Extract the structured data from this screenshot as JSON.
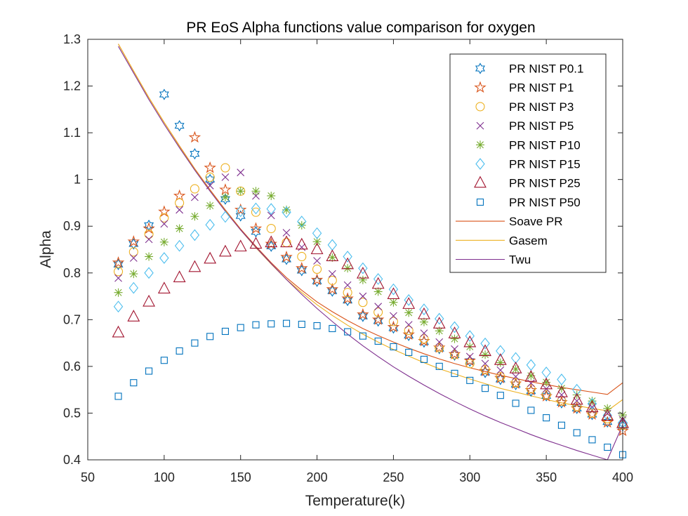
{
  "chart_data": {
    "type": "scatter",
    "title": "PR EoS Alpha functions value comparison for oxygen",
    "xlabel": "Temperature(k)",
    "ylabel": "Alpha",
    "xlim": [
      50,
      400
    ],
    "ylim": [
      0.4,
      1.3
    ],
    "xticks": [
      50,
      100,
      150,
      200,
      250,
      300,
      350,
      400
    ],
    "xtick_labels": [
      "50",
      "100",
      "150",
      "200",
      "250",
      "300",
      "350",
      "400"
    ],
    "yticks": [
      0.4,
      0.5,
      0.6,
      0.7,
      0.8,
      0.9,
      1.0,
      1.1,
      1.2,
      1.3
    ],
    "ytick_labels": [
      "0.4",
      "0.5",
      "0.6",
      "0.7",
      "0.8",
      "0.9",
      "1",
      "1.1",
      "1.2",
      "1.3"
    ],
    "grid": false,
    "legend_position": "top-right",
    "x": [
      70,
      80,
      90,
      100,
      110,
      120,
      130,
      140,
      150,
      160,
      170,
      180,
      190,
      200,
      210,
      220,
      230,
      240,
      250,
      260,
      270,
      280,
      290,
      300,
      310,
      320,
      330,
      340,
      350,
      360,
      370,
      380,
      390,
      400
    ],
    "series": [
      {
        "name": "PR NIST P0.1",
        "kind": "marker",
        "marker": "hexagram",
        "color": "#0072BD",
        "values": [
          0.818,
          0.862,
          0.902,
          1.182,
          1.115,
          1.055,
          1.0,
          0.958,
          0.922,
          0.888,
          0.857,
          0.829,
          0.805,
          0.782,
          0.761,
          0.741,
          0.707,
          0.697,
          0.682,
          0.666,
          0.652,
          0.638,
          0.624,
          0.611,
          0.587,
          0.572,
          0.561,
          0.547,
          0.537,
          0.522,
          0.51,
          0.497,
          0.481,
          0.473
        ]
      },
      {
        "name": "PR NIST P1",
        "kind": "marker",
        "marker": "pentagram",
        "color": "#D95319",
        "values": [
          0.822,
          0.867,
          0.895,
          0.931,
          0.965,
          1.09,
          1.025,
          0.978,
          0.935,
          0.895,
          0.862,
          0.834,
          0.81,
          0.785,
          0.765,
          0.745,
          0.711,
          0.7,
          0.684,
          0.668,
          0.654,
          0.64,
          0.626,
          0.612,
          0.59,
          0.575,
          0.563,
          0.549,
          0.536,
          0.523,
          0.51,
          0.497,
          0.48,
          0.462
        ]
      },
      {
        "name": "PR NIST P3",
        "kind": "marker",
        "marker": "circle",
        "color": "#EDB120",
        "values": [
          0.803,
          0.845,
          0.883,
          0.918,
          0.95,
          0.98,
          1.005,
          1.025,
          0.975,
          0.93,
          0.895,
          0.865,
          0.835,
          0.808,
          0.784,
          0.758,
          0.737,
          0.716,
          0.696,
          0.677,
          0.659,
          0.64,
          0.625,
          0.606,
          0.593,
          0.578,
          0.565,
          0.552,
          0.539,
          0.526,
          0.514,
          0.5,
          0.488,
          0.474
        ]
      },
      {
        "name": "PR NIST P5",
        "kind": "marker",
        "marker": "x",
        "color": "#7E2F8E",
        "values": [
          0.789,
          0.832,
          0.872,
          0.905,
          0.935,
          0.962,
          0.987,
          1.005,
          1.015,
          0.965,
          0.923,
          0.886,
          0.855,
          0.826,
          0.798,
          0.774,
          0.75,
          0.728,
          0.708,
          0.689,
          0.671,
          0.652,
          0.637,
          0.621,
          0.606,
          0.592,
          0.578,
          0.564,
          0.552,
          0.539,
          0.526,
          0.513,
          0.499,
          0.486
        ]
      },
      {
        "name": "PR NIST P10",
        "kind": "marker",
        "marker": "asterisk",
        "color": "#77AC30",
        "values": [
          0.758,
          0.798,
          0.835,
          0.866,
          0.895,
          0.921,
          0.944,
          0.962,
          0.975,
          0.975,
          0.965,
          0.935,
          0.902,
          0.867,
          0.833,
          0.81,
          0.785,
          0.76,
          0.737,
          0.715,
          0.695,
          0.676,
          0.659,
          0.642,
          0.625,
          0.608,
          0.594,
          0.58,
          0.566,
          0.553,
          0.539,
          0.526,
          0.51,
          0.496
        ]
      },
      {
        "name": "PR NIST P15",
        "kind": "marker",
        "marker": "diamond",
        "color": "#4DBEEE",
        "values": [
          0.728,
          0.768,
          0.8,
          0.832,
          0.858,
          0.881,
          0.903,
          0.92,
          0.932,
          0.938,
          0.937,
          0.93,
          0.91,
          0.885,
          0.86,
          0.835,
          0.81,
          0.787,
          0.765,
          0.742,
          0.722,
          0.702,
          0.684,
          0.665,
          0.649,
          0.633,
          0.618,
          0.603,
          0.587,
          0.572,
          0.55,
          0.52,
          0.495,
          0.48
        ]
      },
      {
        "name": "PR NIST P25",
        "kind": "marker",
        "marker": "triangle",
        "color": "#A2142F",
        "values": [
          0.672,
          0.706,
          0.738,
          0.766,
          0.79,
          0.812,
          0.83,
          0.845,
          0.856,
          0.862,
          0.865,
          0.865,
          0.86,
          0.85,
          0.835,
          0.818,
          0.798,
          0.776,
          0.754,
          0.733,
          0.711,
          0.691,
          0.67,
          0.651,
          0.632,
          0.613,
          0.595,
          0.577,
          0.561,
          0.544,
          0.528,
          0.512,
          0.494,
          0.478
        ]
      },
      {
        "name": "PR NIST P50",
        "kind": "marker",
        "marker": "square",
        "color": "#0072BD",
        "values": [
          0.536,
          0.565,
          0.59,
          0.613,
          0.633,
          0.65,
          0.664,
          0.675,
          0.683,
          0.689,
          0.691,
          0.692,
          0.69,
          0.687,
          0.681,
          0.674,
          0.665,
          0.654,
          0.642,
          0.63,
          0.615,
          0.6,
          0.585,
          0.57,
          0.553,
          0.538,
          0.521,
          0.506,
          0.49,
          0.474,
          0.458,
          0.443,
          0.427,
          0.411
        ]
      },
      {
        "name": "Soave PR",
        "kind": "line",
        "color": "#D95319",
        "values": [
          1.29,
          1.232,
          1.175,
          1.122,
          1.072,
          1.023,
          0.978,
          0.935,
          0.894,
          0.857,
          0.822,
          0.79,
          0.763,
          0.738,
          0.717,
          0.698,
          0.681,
          0.666,
          0.652,
          0.639,
          0.627,
          0.616,
          0.606,
          0.597,
          0.589,
          0.581,
          0.574,
          0.567,
          0.561,
          0.555,
          0.55,
          0.545,
          0.54,
          0.565
        ]
      },
      {
        "name": "Gasem",
        "kind": "line",
        "color": "#EDB120",
        "values": [
          1.29,
          1.232,
          1.175,
          1.122,
          1.071,
          1.022,
          0.976,
          0.933,
          0.892,
          0.854,
          0.819,
          0.786,
          0.758,
          0.732,
          0.709,
          0.688,
          0.669,
          0.652,
          0.636,
          0.622,
          0.608,
          0.595,
          0.584,
          0.573,
          0.563,
          0.553,
          0.545,
          0.537,
          0.529,
          0.522,
          0.516,
          0.51,
          0.505,
          0.529
        ]
      },
      {
        "name": "Twu",
        "kind": "line",
        "color": "#7E2F8E",
        "values": [
          1.285,
          1.228,
          1.171,
          1.118,
          1.068,
          1.02,
          0.975,
          0.932,
          0.892,
          0.855,
          0.82,
          0.786,
          0.754,
          0.724,
          0.696,
          0.669,
          0.644,
          0.621,
          0.599,
          0.579,
          0.56,
          0.542,
          0.525,
          0.509,
          0.494,
          0.48,
          0.467,
          0.454,
          0.442,
          0.431,
          0.42,
          0.41,
          0.4,
          0.475
        ]
      }
    ]
  }
}
